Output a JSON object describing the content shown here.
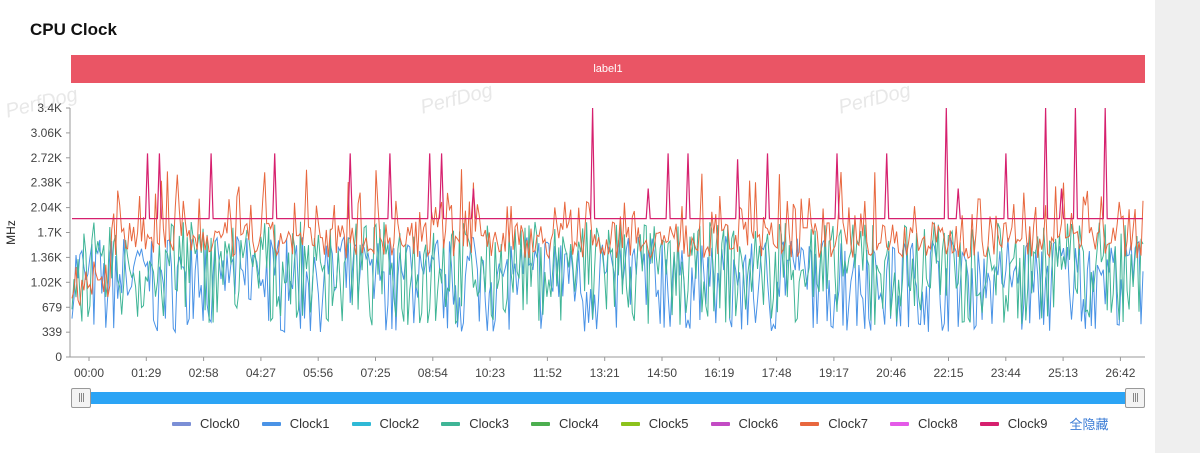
{
  "header": {
    "title": "CPU Clock"
  },
  "label_bar": {
    "text": "label1",
    "color": "#ea5565"
  },
  "watermark": "PerfDog",
  "legend_toggle": "全隐藏",
  "slider": {
    "start_handle": "|||",
    "end_handle": "|||",
    "range": [
      0,
      1
    ]
  },
  "chart_data": {
    "type": "line",
    "ylabel": "MHz",
    "ylim": [
      0,
      3400
    ],
    "yticks": [
      "0",
      "339",
      "679",
      "1.02K",
      "1.36K",
      "1.7K",
      "2.04K",
      "2.38K",
      "2.72K",
      "3.06K",
      "3.4K"
    ],
    "ytick_values": [
      0,
      339,
      679,
      1020,
      1360,
      1700,
      2040,
      2380,
      2720,
      3060,
      3400
    ],
    "xticks": [
      "00:00",
      "01:29",
      "02:58",
      "04:27",
      "05:56",
      "07:25",
      "08:54",
      "10:23",
      "11:52",
      "13:21",
      "14:50",
      "16:19",
      "17:48",
      "19:17",
      "20:46",
      "22:15",
      "23:44",
      "25:13",
      "26:42"
    ],
    "x_range_seconds": [
      0,
      1710
    ],
    "series": [
      {
        "name": "Clock0",
        "color": "#7b8fd6",
        "values": []
      },
      {
        "name": "Clock1",
        "color": "#4a93e6",
        "range": [
          340,
          1700
        ]
      },
      {
        "name": "Clock2",
        "color": "#2fb9d6",
        "values": []
      },
      {
        "name": "Clock3",
        "color": "#3fb596",
        "range": [
          400,
          1900
        ]
      },
      {
        "name": "Clock4",
        "color": "#4cae4f",
        "values": []
      },
      {
        "name": "Clock5",
        "color": "#8cc21c",
        "values": []
      },
      {
        "name": "Clock6",
        "color": "#c34bc4",
        "values": []
      },
      {
        "name": "Clock7",
        "color": "#e8673e",
        "range": [
          700,
          2600
        ]
      },
      {
        "name": "Clock8",
        "color": "#e45ae8",
        "values": []
      },
      {
        "name": "Clock9",
        "color": "#d6206e",
        "baseline": 1890,
        "peak": 3400
      }
    ]
  }
}
